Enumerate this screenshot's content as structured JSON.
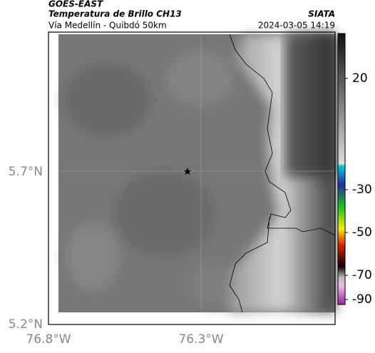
{
  "header": {
    "title": "GOES-EAST",
    "subtitle": "Temperatura de Brillo CH13",
    "route": "Vía Medellín - Quibdó 50km",
    "source": "SIATA",
    "datetime": "2024-03-05 14:19"
  },
  "map": {
    "lat_labels": [
      "5.7°N",
      "5.2°N"
    ],
    "lon_labels": [
      "76.8°W",
      "76.3°W"
    ]
  },
  "colorbar": {
    "labels": [
      "20",
      "-30",
      "-50",
      "-70",
      "-90"
    ]
  }
}
